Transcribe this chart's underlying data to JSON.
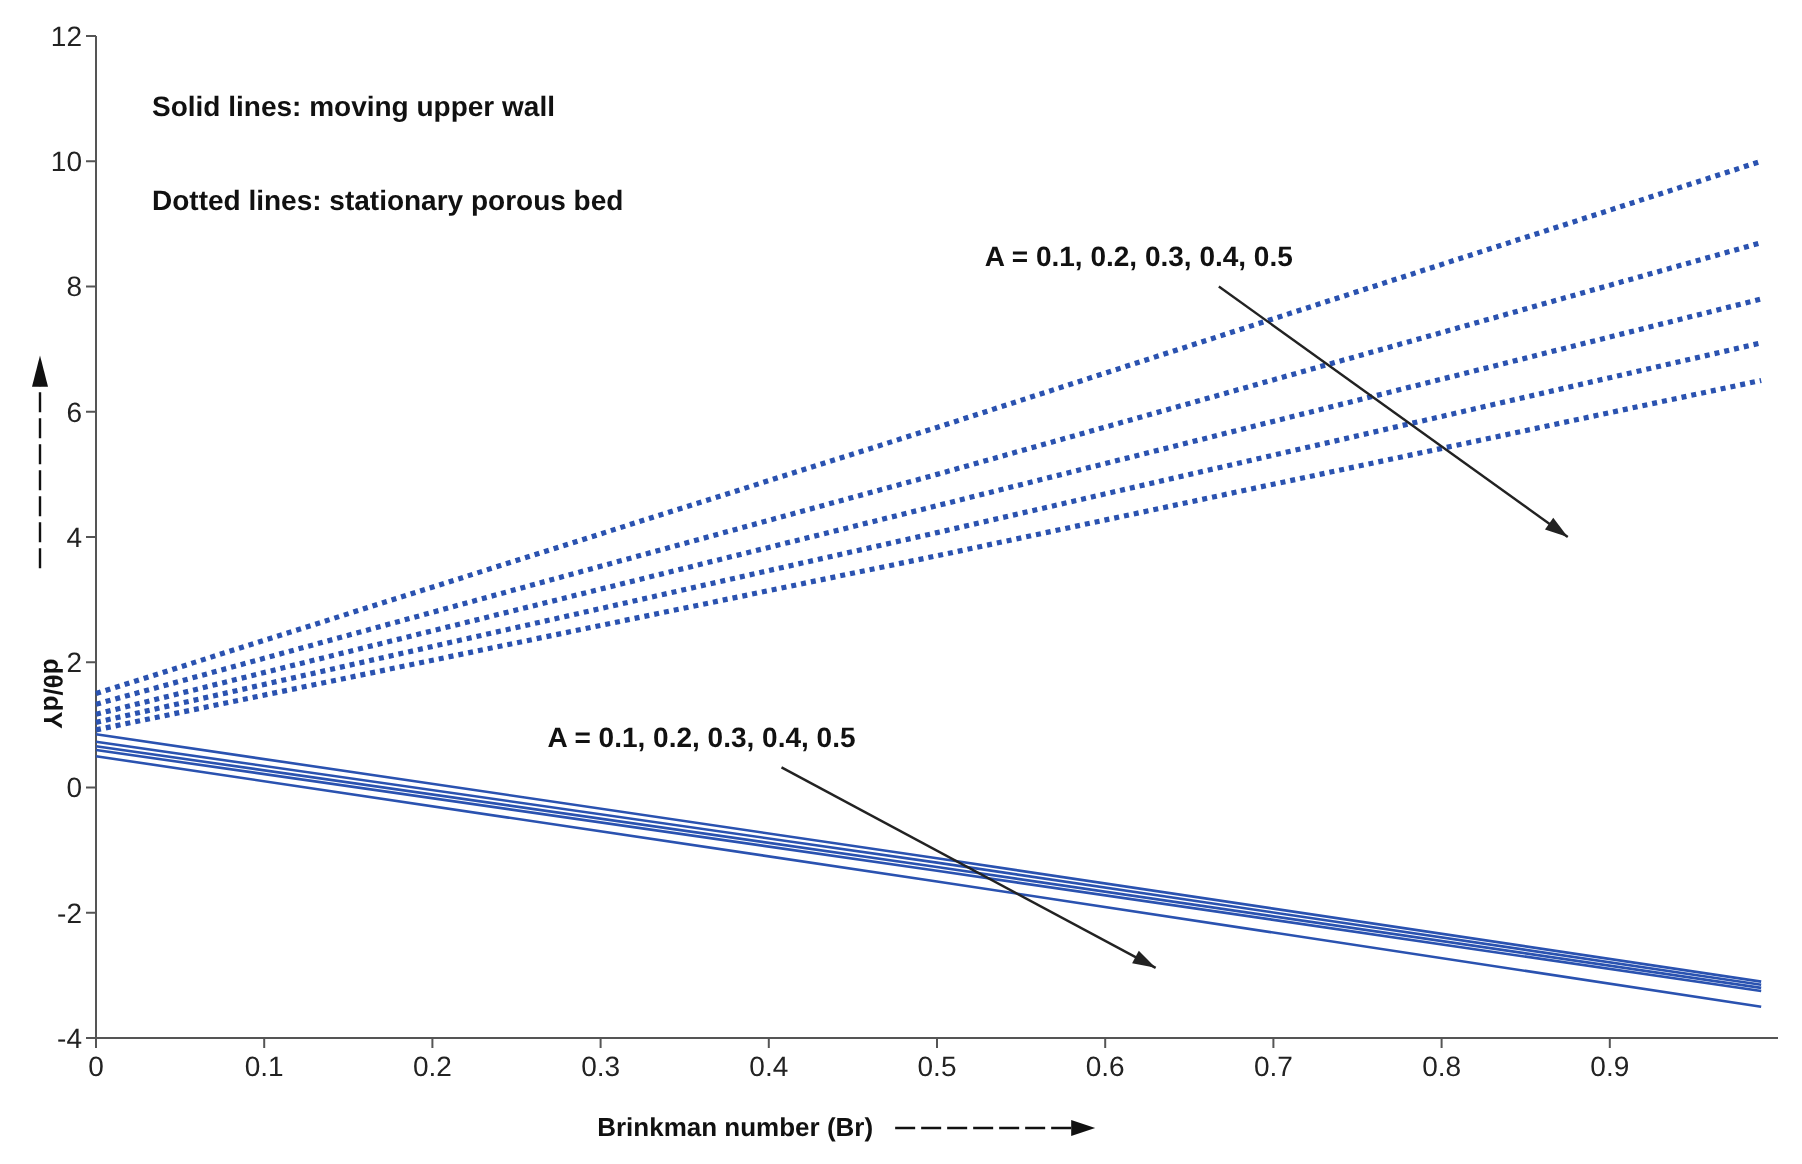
{
  "chart_data": {
    "type": "line",
    "xlabel": "Brinkman number (Br)",
    "ylabel": "dθ/dY",
    "xlim": [
      0,
      1
    ],
    "xticks": [
      0,
      0.1,
      0.2,
      0.3,
      0.4,
      0.5,
      0.6,
      0.7,
      0.8,
      0.9
    ],
    "ylim": [
      -4,
      12
    ],
    "yticks": [
      -4,
      -2,
      0,
      2,
      4,
      6,
      8,
      10,
      12
    ],
    "grid": false,
    "series": [
      {
        "color": "#2a52b0",
        "line_style": "dotted",
        "x": [
          0,
          0.5,
          0.99
        ],
        "values": [
          1.5,
          5.75,
          10.0
        ]
      },
      {
        "color": "#2a52b0",
        "line_style": "dotted",
        "x": [
          0,
          0.5,
          0.99
        ],
        "values": [
          1.33,
          5.0,
          8.7
        ]
      },
      {
        "color": "#2a52b0",
        "line_style": "dotted",
        "x": [
          0,
          0.5,
          0.99
        ],
        "values": [
          1.17,
          4.5,
          7.8
        ]
      },
      {
        "color": "#2a52b0",
        "line_style": "dotted",
        "x": [
          0,
          0.5,
          0.99
        ],
        "values": [
          1.04,
          4.07,
          7.1
        ]
      },
      {
        "color": "#2a52b0",
        "line_style": "dotted",
        "x": [
          0,
          0.5,
          0.99
        ],
        "values": [
          0.92,
          3.7,
          6.5
        ]
      },
      {
        "color": "#2a52b0",
        "line_style": "solid",
        "x": [
          0,
          0.5,
          0.99
        ],
        "values": [
          0.85,
          -1.13,
          -3.1
        ]
      },
      {
        "color": "#2a52b0",
        "line_style": "solid",
        "x": [
          0,
          0.5,
          0.99
        ],
        "values": [
          0.73,
          -1.2,
          -3.15
        ]
      },
      {
        "color": "#2a52b0",
        "line_style": "solid",
        "x": [
          0,
          0.5,
          0.99
        ],
        "values": [
          0.66,
          -1.27,
          -3.2
        ]
      },
      {
        "color": "#2a52b0",
        "line_style": "solid",
        "x": [
          0,
          0.5,
          0.99
        ],
        "values": [
          0.6,
          -1.33,
          -3.25
        ]
      },
      {
        "color": "#2a52b0",
        "line_style": "solid",
        "x": [
          0,
          0.5,
          0.99
        ],
        "values": [
          0.5,
          -1.5,
          -3.5
        ]
      }
    ],
    "annotations": [
      "Solid lines:  moving upper wall",
      "Dotted lines: stationary porous bed",
      "A = 0.1, 0.2, 0.3, 0.4, 0.5",
      "A = 0.1, 0.2, 0.3, 0.4, 0.5"
    ]
  }
}
